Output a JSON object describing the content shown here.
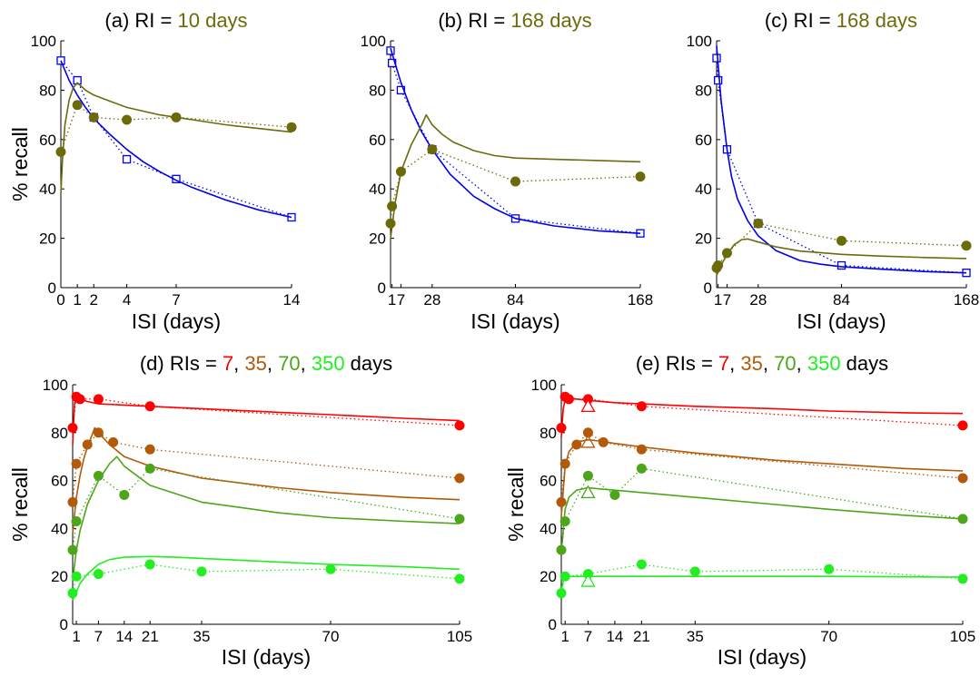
{
  "colors": {
    "blue": "#0000ee",
    "olive": "#6b6b0a",
    "red": "#ff0000",
    "brown": "#b25a0a",
    "green": "#4da51a",
    "lime": "#22ee22"
  },
  "chart_data": [
    {
      "id": "a",
      "type": "line",
      "title_parts": [
        {
          "text": "(a) RI = ",
          "color": "#000000"
        },
        {
          "text": "10 days",
          "color": "#6b6b0a"
        }
      ],
      "xlabel": "ISI (days)",
      "ylabel": "% recall",
      "xlim": [
        0,
        14
      ],
      "ylim": [
        0,
        100
      ],
      "xticks": [
        0,
        1,
        2,
        4,
        7,
        14
      ],
      "xtick_labels": [
        "0",
        "1",
        "2",
        "4",
        "7",
        "14"
      ],
      "yticks": [
        0,
        20,
        40,
        60,
        80,
        100
      ],
      "series": [
        {
          "color": "#0000ee",
          "marker": "square",
          "role": "data",
          "dotted": true,
          "x": [
            0,
            1,
            2,
            4,
            7,
            14
          ],
          "y": [
            92,
            84,
            69,
            52,
            44,
            28.5
          ]
        },
        {
          "color": "#0000ee",
          "role": "fit",
          "x": [
            0,
            0.5,
            1,
            1.5,
            2,
            3,
            4,
            5,
            6,
            7,
            8,
            10,
            12,
            14
          ],
          "y": [
            92,
            84,
            78,
            73,
            68.5,
            62,
            56,
            51,
            47,
            43.5,
            40.5,
            35.5,
            31.5,
            28.5
          ]
        },
        {
          "color": "#6b6b0a",
          "marker": "circle",
          "role": "data",
          "dotted": true,
          "x": [
            0,
            1,
            2,
            4,
            7,
            14
          ],
          "y": [
            55,
            74,
            69,
            68,
            69,
            65
          ]
        },
        {
          "color": "#6b6b0a",
          "role": "fit",
          "x": [
            0,
            0.1,
            0.25,
            0.5,
            0.75,
            1,
            1.5,
            2,
            3,
            4,
            5,
            6,
            7,
            8,
            10,
            12,
            14
          ],
          "y": [
            38,
            52,
            66,
            76,
            81,
            83,
            80,
            78,
            75.5,
            73,
            71.5,
            70,
            69,
            68,
            66,
            64.5,
            63
          ]
        }
      ]
    },
    {
      "id": "b",
      "type": "line",
      "title_parts": [
        {
          "text": "(b) RI = ",
          "color": "#000000"
        },
        {
          "text": "168 days",
          "color": "#6b6b0a"
        }
      ],
      "xlabel": "ISI (days)",
      "ylabel": "",
      "xlim": [
        0,
        168
      ],
      "ylim": [
        0,
        100
      ],
      "xticks": [
        1,
        7,
        28,
        84,
        168
      ],
      "xtick_labels": [
        "1",
        "7",
        "28",
        "84",
        "168"
      ],
      "yticks": [
        0,
        20,
        40,
        60,
        80,
        100
      ],
      "series": [
        {
          "color": "#0000ee",
          "marker": "square",
          "role": "data",
          "dotted": true,
          "x": [
            0,
            1,
            7,
            28,
            84,
            168
          ],
          "y": [
            96,
            91,
            80,
            56,
            28,
            22
          ]
        },
        {
          "color": "#0000ee",
          "role": "fit",
          "x": [
            0,
            3,
            7,
            14,
            21,
            28,
            40,
            56,
            70,
            84,
            110,
            140,
            168
          ],
          "y": [
            97,
            91,
            83,
            72,
            63,
            56,
            46,
            37,
            32,
            28,
            25,
            23,
            22
          ]
        },
        {
          "color": "#6b6b0a",
          "marker": "circle",
          "role": "data",
          "dotted": true,
          "x": [
            0,
            1,
            7,
            28,
            84,
            168
          ],
          "y": [
            26,
            33,
            47,
            56,
            43,
            45
          ]
        },
        {
          "color": "#6b6b0a",
          "role": "fit",
          "x": [
            0,
            3,
            7,
            14,
            21,
            24,
            28,
            35,
            42,
            56,
            70,
            84,
            110,
            140,
            168
          ],
          "y": [
            20,
            34,
            47,
            58,
            66,
            70,
            66,
            62,
            59,
            55.5,
            53.5,
            52.5,
            52,
            51.5,
            51
          ]
        }
      ]
    },
    {
      "id": "c",
      "type": "line",
      "title_parts": [
        {
          "text": "(c) RI = ",
          "color": "#000000"
        },
        {
          "text": "168 days",
          "color": "#6b6b0a"
        }
      ],
      "xlabel": "ISI (days)",
      "ylabel": "",
      "xlim": [
        0,
        168
      ],
      "ylim": [
        0,
        100
      ],
      "xticks": [
        1,
        7,
        28,
        84,
        168
      ],
      "xtick_labels": [
        "1",
        "7",
        "28",
        "84",
        "168"
      ],
      "yticks": [
        0,
        20,
        40,
        60,
        80,
        100
      ],
      "series": [
        {
          "color": "#0000ee",
          "marker": "square",
          "role": "data",
          "dotted": true,
          "x": [
            0,
            1,
            7,
            28,
            84,
            168
          ],
          "y": [
            93,
            84,
            56,
            26,
            9,
            6
          ]
        },
        {
          "color": "#0000ee",
          "role": "fit",
          "x": [
            0,
            3,
            7,
            10,
            14,
            21,
            28,
            40,
            56,
            70,
            84,
            110,
            140,
            168
          ],
          "y": [
            98,
            76,
            56,
            45,
            36,
            27,
            21,
            15,
            11,
            9.5,
            8.5,
            7.5,
            6.5,
            6
          ]
        },
        {
          "color": "#6b6b0a",
          "marker": "circle",
          "role": "data",
          "dotted": true,
          "x": [
            0,
            1,
            7,
            28,
            84,
            168
          ],
          "y": [
            8,
            9,
            14,
            26,
            19,
            17
          ]
        },
        {
          "color": "#6b6b0a",
          "role": "fit",
          "x": [
            0,
            3,
            7,
            12,
            17,
            21,
            28,
            40,
            56,
            84,
            110,
            140,
            168
          ],
          "y": [
            5,
            9,
            13.5,
            17.5,
            19.5,
            19.7,
            18.5,
            16.5,
            14.8,
            13.5,
            12.8,
            12.2,
            11.8
          ]
        }
      ]
    },
    {
      "id": "d",
      "type": "line",
      "title_parts": [
        {
          "text": "(d) RIs = ",
          "color": "#000000"
        },
        {
          "text": "7",
          "color": "#ff0000"
        },
        {
          "text": ", ",
          "color": "#000000"
        },
        {
          "text": "35",
          "color": "#b25a0a"
        },
        {
          "text": ", ",
          "color": "#000000"
        },
        {
          "text": "70",
          "color": "#4da51a"
        },
        {
          "text": ", ",
          "color": "#000000"
        },
        {
          "text": "350",
          "color": "#22ee22"
        },
        {
          "text": " days",
          "color": "#000000"
        }
      ],
      "xlabel": "ISI (days)",
      "ylabel": "% recall",
      "xlim": [
        0,
        105
      ],
      "ylim": [
        0,
        100
      ],
      "xticks": [
        1,
        7,
        14,
        21,
        35,
        70,
        105
      ],
      "xtick_labels": [
        "1",
        "7",
        "14",
        "21",
        "35",
        "70",
        "105"
      ],
      "yticks": [
        0,
        20,
        40,
        60,
        80,
        100
      ],
      "series": [
        {
          "color": "#ff0000",
          "marker": "circle",
          "role": "data",
          "dotted": true,
          "x": [
            0,
            1,
            2,
            7,
            21,
            105
          ],
          "y": [
            82,
            95,
            94,
            94,
            91,
            83
          ]
        },
        {
          "color": "#ff0000",
          "role": "fit",
          "x": [
            0,
            0.5,
            1,
            2,
            4,
            7,
            14,
            21,
            35,
            56,
            70,
            90,
            105
          ],
          "y": [
            75,
            92,
            95,
            94,
            93,
            92,
            91.5,
            91,
            90,
            88.5,
            87.5,
            86,
            85
          ]
        },
        {
          "color": "#b25a0a",
          "marker": "circle",
          "role": "data",
          "dotted": true,
          "x": [
            0,
            1,
            4,
            7,
            11,
            21,
            105
          ],
          "y": [
            51,
            67,
            75,
            80,
            76,
            73,
            61
          ]
        },
        {
          "color": "#b25a0a",
          "role": "fit",
          "x": [
            0,
            1,
            2,
            3,
            4,
            5,
            6,
            7,
            10,
            14,
            21,
            35,
            56,
            70,
            90,
            105
          ],
          "y": [
            38,
            53,
            62,
            69,
            74,
            78,
            82,
            80,
            75,
            70,
            66,
            61,
            57,
            55,
            53,
            52
          ]
        },
        {
          "color": "#4da51a",
          "marker": "circle",
          "role": "data",
          "dotted": true,
          "x": [
            0,
            1,
            7,
            14,
            21,
            105
          ],
          "y": [
            31,
            43,
            62,
            54,
            65,
            44
          ]
        },
        {
          "color": "#4da51a",
          "role": "fit",
          "x": [
            0,
            1,
            2,
            4,
            7,
            10,
            12,
            14,
            21,
            35,
            56,
            70,
            90,
            105
          ],
          "y": [
            18,
            31,
            39,
            50,
            60,
            67,
            70,
            66,
            58,
            51,
            46.5,
            44.5,
            43,
            42
          ]
        },
        {
          "color": "#22ee22",
          "marker": "circle",
          "role": "data",
          "dotted": true,
          "x": [
            0,
            1,
            7,
            21,
            35,
            70,
            105
          ],
          "y": [
            13,
            20,
            21,
            25,
            22,
            23,
            19
          ]
        },
        {
          "color": "#22ee22",
          "role": "fit",
          "x": [
            0,
            1,
            2,
            4,
            7,
            10,
            14,
            21,
            28,
            35,
            56,
            70,
            90,
            105
          ],
          "y": [
            10,
            13.5,
            17,
            21,
            25,
            27,
            28,
            28.3,
            28,
            27.5,
            26,
            25,
            24,
            23
          ]
        }
      ]
    },
    {
      "id": "e",
      "type": "line",
      "title_parts": [
        {
          "text": "(e) RIs = ",
          "color": "#000000"
        },
        {
          "text": "7",
          "color": "#ff0000"
        },
        {
          "text": ", ",
          "color": "#000000"
        },
        {
          "text": "35",
          "color": "#b25a0a"
        },
        {
          "text": ", ",
          "color": "#000000"
        },
        {
          "text": "70",
          "color": "#4da51a"
        },
        {
          "text": ", ",
          "color": "#000000"
        },
        {
          "text": "350",
          "color": "#22ee22"
        },
        {
          "text": " days",
          "color": "#000000"
        }
      ],
      "xlabel": "ISI (days)",
      "ylabel": "% recall",
      "xlim": [
        0,
        105
      ],
      "ylim": [
        0,
        100
      ],
      "xticks": [
        1,
        7,
        14,
        21,
        35,
        70,
        105
      ],
      "xtick_labels": [
        "1",
        "7",
        "14",
        "21",
        "35",
        "70",
        "105"
      ],
      "yticks": [
        0,
        20,
        40,
        60,
        80,
        100
      ],
      "series": [
        {
          "color": "#ff0000",
          "marker": "circle",
          "role": "data",
          "dotted": true,
          "x": [
            0,
            1,
            2,
            7,
            21,
            105
          ],
          "y": [
            82,
            95,
            94,
            94,
            91,
            83
          ]
        },
        {
          "color": "#ff0000",
          "marker": "triangle",
          "role": "optimum",
          "x": [
            7
          ],
          "y": [
            91
          ]
        },
        {
          "color": "#ff0000",
          "role": "fit",
          "x": [
            0,
            0.5,
            1,
            2,
            4,
            7,
            14,
            21,
            35,
            56,
            70,
            90,
            105
          ],
          "y": [
            78,
            90,
            93.5,
            94.5,
            94,
            93.5,
            92.5,
            92,
            91,
            90,
            89,
            88.3,
            88
          ]
        },
        {
          "color": "#b25a0a",
          "marker": "circle",
          "role": "data",
          "dotted": true,
          "x": [
            0,
            1,
            4,
            7,
            11,
            21,
            105
          ],
          "y": [
            51,
            67,
            75,
            80,
            76,
            73,
            61
          ]
        },
        {
          "color": "#b25a0a",
          "marker": "triangle",
          "role": "optimum",
          "x": [
            7
          ],
          "y": [
            76
          ]
        },
        {
          "color": "#b25a0a",
          "role": "fit",
          "x": [
            0,
            1,
            2,
            4,
            7,
            10,
            14,
            21,
            35,
            56,
            70,
            90,
            105
          ],
          "y": [
            45,
            66,
            72,
            76,
            77,
            76.5,
            75.5,
            74,
            71.5,
            68.5,
            67,
            65,
            64
          ]
        },
        {
          "color": "#4da51a",
          "marker": "circle",
          "role": "data",
          "dotted": true,
          "x": [
            0,
            1,
            7,
            14,
            21,
            105
          ],
          "y": [
            31,
            43,
            62,
            54,
            65,
            44
          ]
        },
        {
          "color": "#4da51a",
          "role": "fit",
          "x": [
            0,
            1,
            2,
            4,
            7,
            10,
            14,
            21,
            35,
            56,
            70,
            90,
            105
          ],
          "y": [
            30,
            48,
            53,
            56,
            57,
            56.5,
            56,
            55,
            53,
            50,
            48,
            45.5,
            44
          ]
        },
        {
          "color": "#4da51a",
          "marker": "triangle",
          "role": "optimum",
          "x": [
            7
          ],
          "y": [
            55
          ]
        },
        {
          "color": "#22ee22",
          "marker": "circle",
          "role": "data",
          "dotted": true,
          "x": [
            0,
            1,
            7,
            21,
            35,
            70,
            105
          ],
          "y": [
            13,
            20,
            21,
            25,
            22,
            23,
            19
          ]
        },
        {
          "color": "#22ee22",
          "marker": "triangle",
          "role": "optimum",
          "x": [
            7
          ],
          "y": [
            18
          ]
        },
        {
          "color": "#22ee22",
          "role": "fit",
          "x": [
            0,
            0.5,
            1,
            2,
            4,
            7,
            14,
            21,
            35,
            56,
            70,
            90,
            105
          ],
          "y": [
            14,
            18,
            19.5,
            20,
            20,
            20,
            20,
            20,
            20,
            20,
            20,
            19.8,
            19.7
          ]
        }
      ]
    }
  ]
}
